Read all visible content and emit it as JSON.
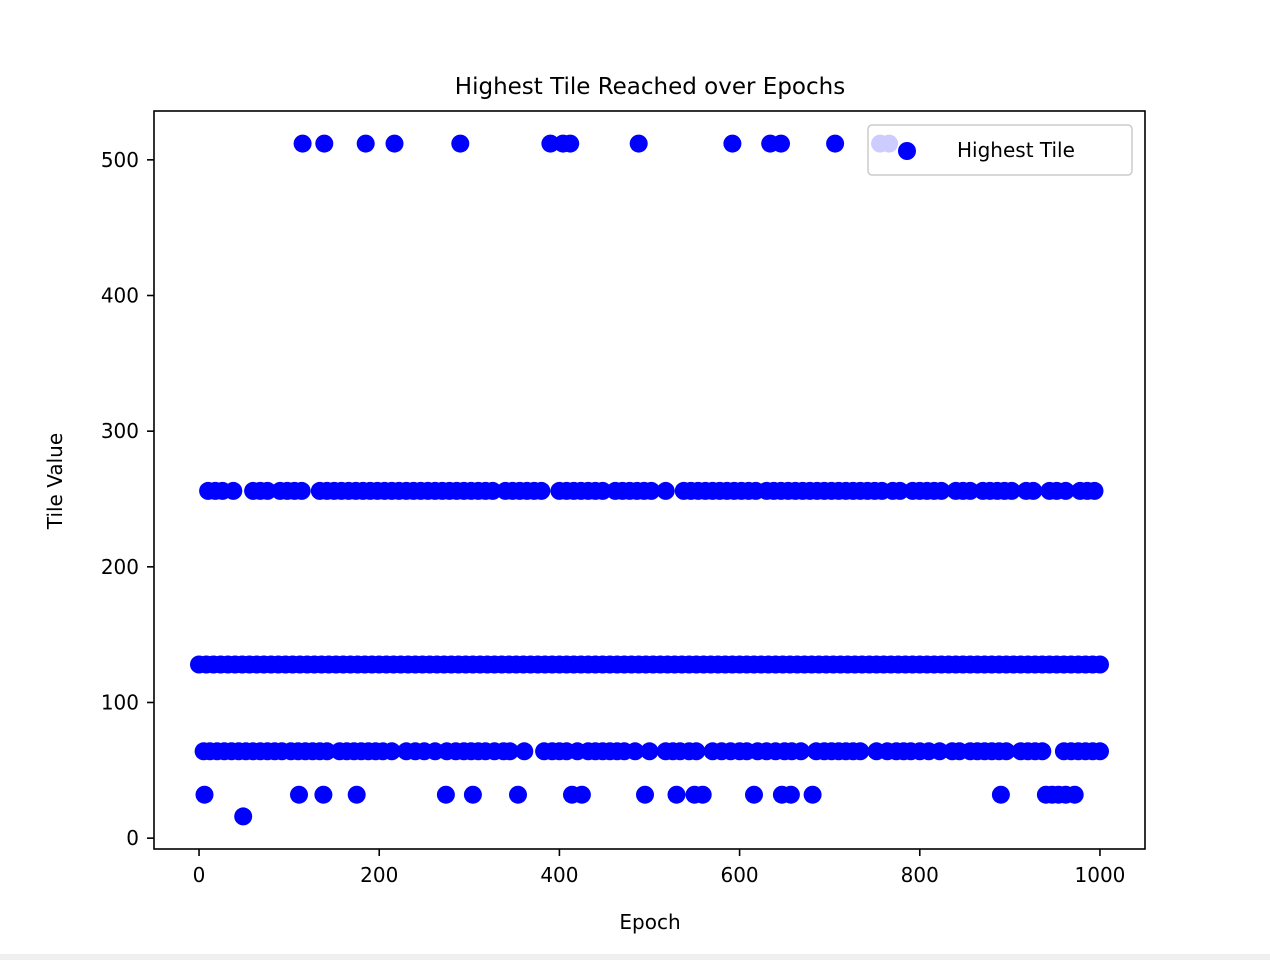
{
  "chart_data": {
    "type": "scatter",
    "title": "Highest Tile Reached over Epochs",
    "xlabel": "Epoch",
    "ylabel": "Tile Value",
    "xlim": [
      -50,
      1050
    ],
    "ylim": [
      -8,
      536
    ],
    "xticks": [
      0,
      200,
      400,
      600,
      800,
      1000
    ],
    "yticks": [
      0,
      100,
      200,
      300,
      400,
      500
    ],
    "grid": false,
    "legend_position": "top-right",
    "marker_color": "#0000ff",
    "series": [
      {
        "name": "Highest Tile",
        "color": "#0000ff",
        "points_by_value": [
          {
            "y": 16,
            "x": [
              49
            ]
          },
          {
            "y": 32,
            "x": [
              6,
              111,
              138,
              175,
              274,
              304,
              354,
              414,
              425,
              495,
              530,
              550,
              559,
              616,
              647,
              657,
              681,
              890,
              940,
              947,
              954,
              962,
              972
            ]
          },
          {
            "y": 64,
            "x": [
              5,
              12,
              20,
              28,
              36,
              44,
              52,
              60,
              68,
              76,
              84,
              92,
              102,
              110,
              118,
              126,
              134,
              142,
              156,
              164,
              172,
              180,
              188,
              196,
              204,
              214,
              230,
              240,
              250,
              262,
              275,
              285,
              294,
              302,
              310,
              318,
              328,
              338,
              345,
              361,
              383,
              392,
              400,
              408,
              420,
              432,
              440,
              448,
              456,
              464,
              472,
              484,
              500,
              518,
              526,
              534,
              544,
              552,
              570,
              580,
              590,
              600,
              608,
              620,
              630,
              640,
              650,
              658,
              668,
              685,
              694,
              702,
              710,
              718,
              726,
              734,
              752,
              764,
              774,
              782,
              790,
              800,
              810,
              822,
              836,
              844,
              856,
              864,
              872,
              880,
              888,
              896,
              912,
              920,
              928,
              936,
              960,
              968,
              976,
              984,
              992,
              1000
            ]
          },
          {
            "y": 128,
            "x": [
              0,
              8,
              16,
              24,
              32,
              40,
              48,
              56,
              64,
              72,
              80,
              88,
              96,
              104,
              112,
              120,
              128,
              136,
              144,
              152,
              160,
              168,
              176,
              184,
              192,
              200,
              208,
              216,
              224,
              232,
              240,
              248,
              256,
              264,
              272,
              280,
              288,
              296,
              304,
              312,
              320,
              328,
              336,
              344,
              352,
              360,
              368,
              376,
              384,
              392,
              400,
              408,
              416,
              424,
              432,
              440,
              448,
              456,
              464,
              472,
              480,
              488,
              496,
              504,
              512,
              520,
              528,
              536,
              544,
              552,
              560,
              568,
              576,
              584,
              592,
              600,
              608,
              616,
              624,
              632,
              640,
              648,
              656,
              664,
              672,
              680,
              688,
              696,
              704,
              712,
              720,
              728,
              736,
              744,
              752,
              760,
              768,
              776,
              784,
              792,
              800,
              808,
              816,
              824,
              832,
              840,
              848,
              856,
              864,
              872,
              880,
              888,
              896,
              904,
              912,
              920,
              928,
              936,
              944,
              952,
              960,
              968,
              976,
              984,
              992,
              1000
            ]
          },
          {
            "y": 256,
            "x": [
              10,
              18,
              26,
              38,
              60,
              68,
              76,
              90,
              98,
              106,
              114,
              134,
              142,
              150,
              158,
              166,
              174,
              182,
              190,
              198,
              206,
              214,
              222,
              230,
              238,
              246,
              254,
              262,
              270,
              278,
              286,
              294,
              302,
              310,
              318,
              326,
              340,
              348,
              356,
              364,
              372,
              380,
              400,
              408,
              416,
              424,
              432,
              440,
              448,
              462,
              470,
              478,
              486,
              494,
              502,
              518,
              538,
              546,
              554,
              562,
              570,
              578,
              586,
              594,
              602,
              610,
              618,
              630,
              638,
              646,
              654,
              662,
              670,
              678,
              686,
              694,
              702,
              710,
              718,
              726,
              734,
              742,
              750,
              758,
              770,
              778,
              792,
              800,
              808,
              816,
              824,
              840,
              848,
              856,
              870,
              878,
              886,
              894,
              902,
              918,
              926,
              944,
              952,
              962,
              978,
              986,
              994
            ]
          },
          {
            "y": 512,
            "x": [
              115,
              139,
              185,
              217,
              290,
              390,
              404,
              412,
              488,
              592,
              634,
              646,
              706,
              756,
              766
            ]
          }
        ]
      }
    ]
  }
}
